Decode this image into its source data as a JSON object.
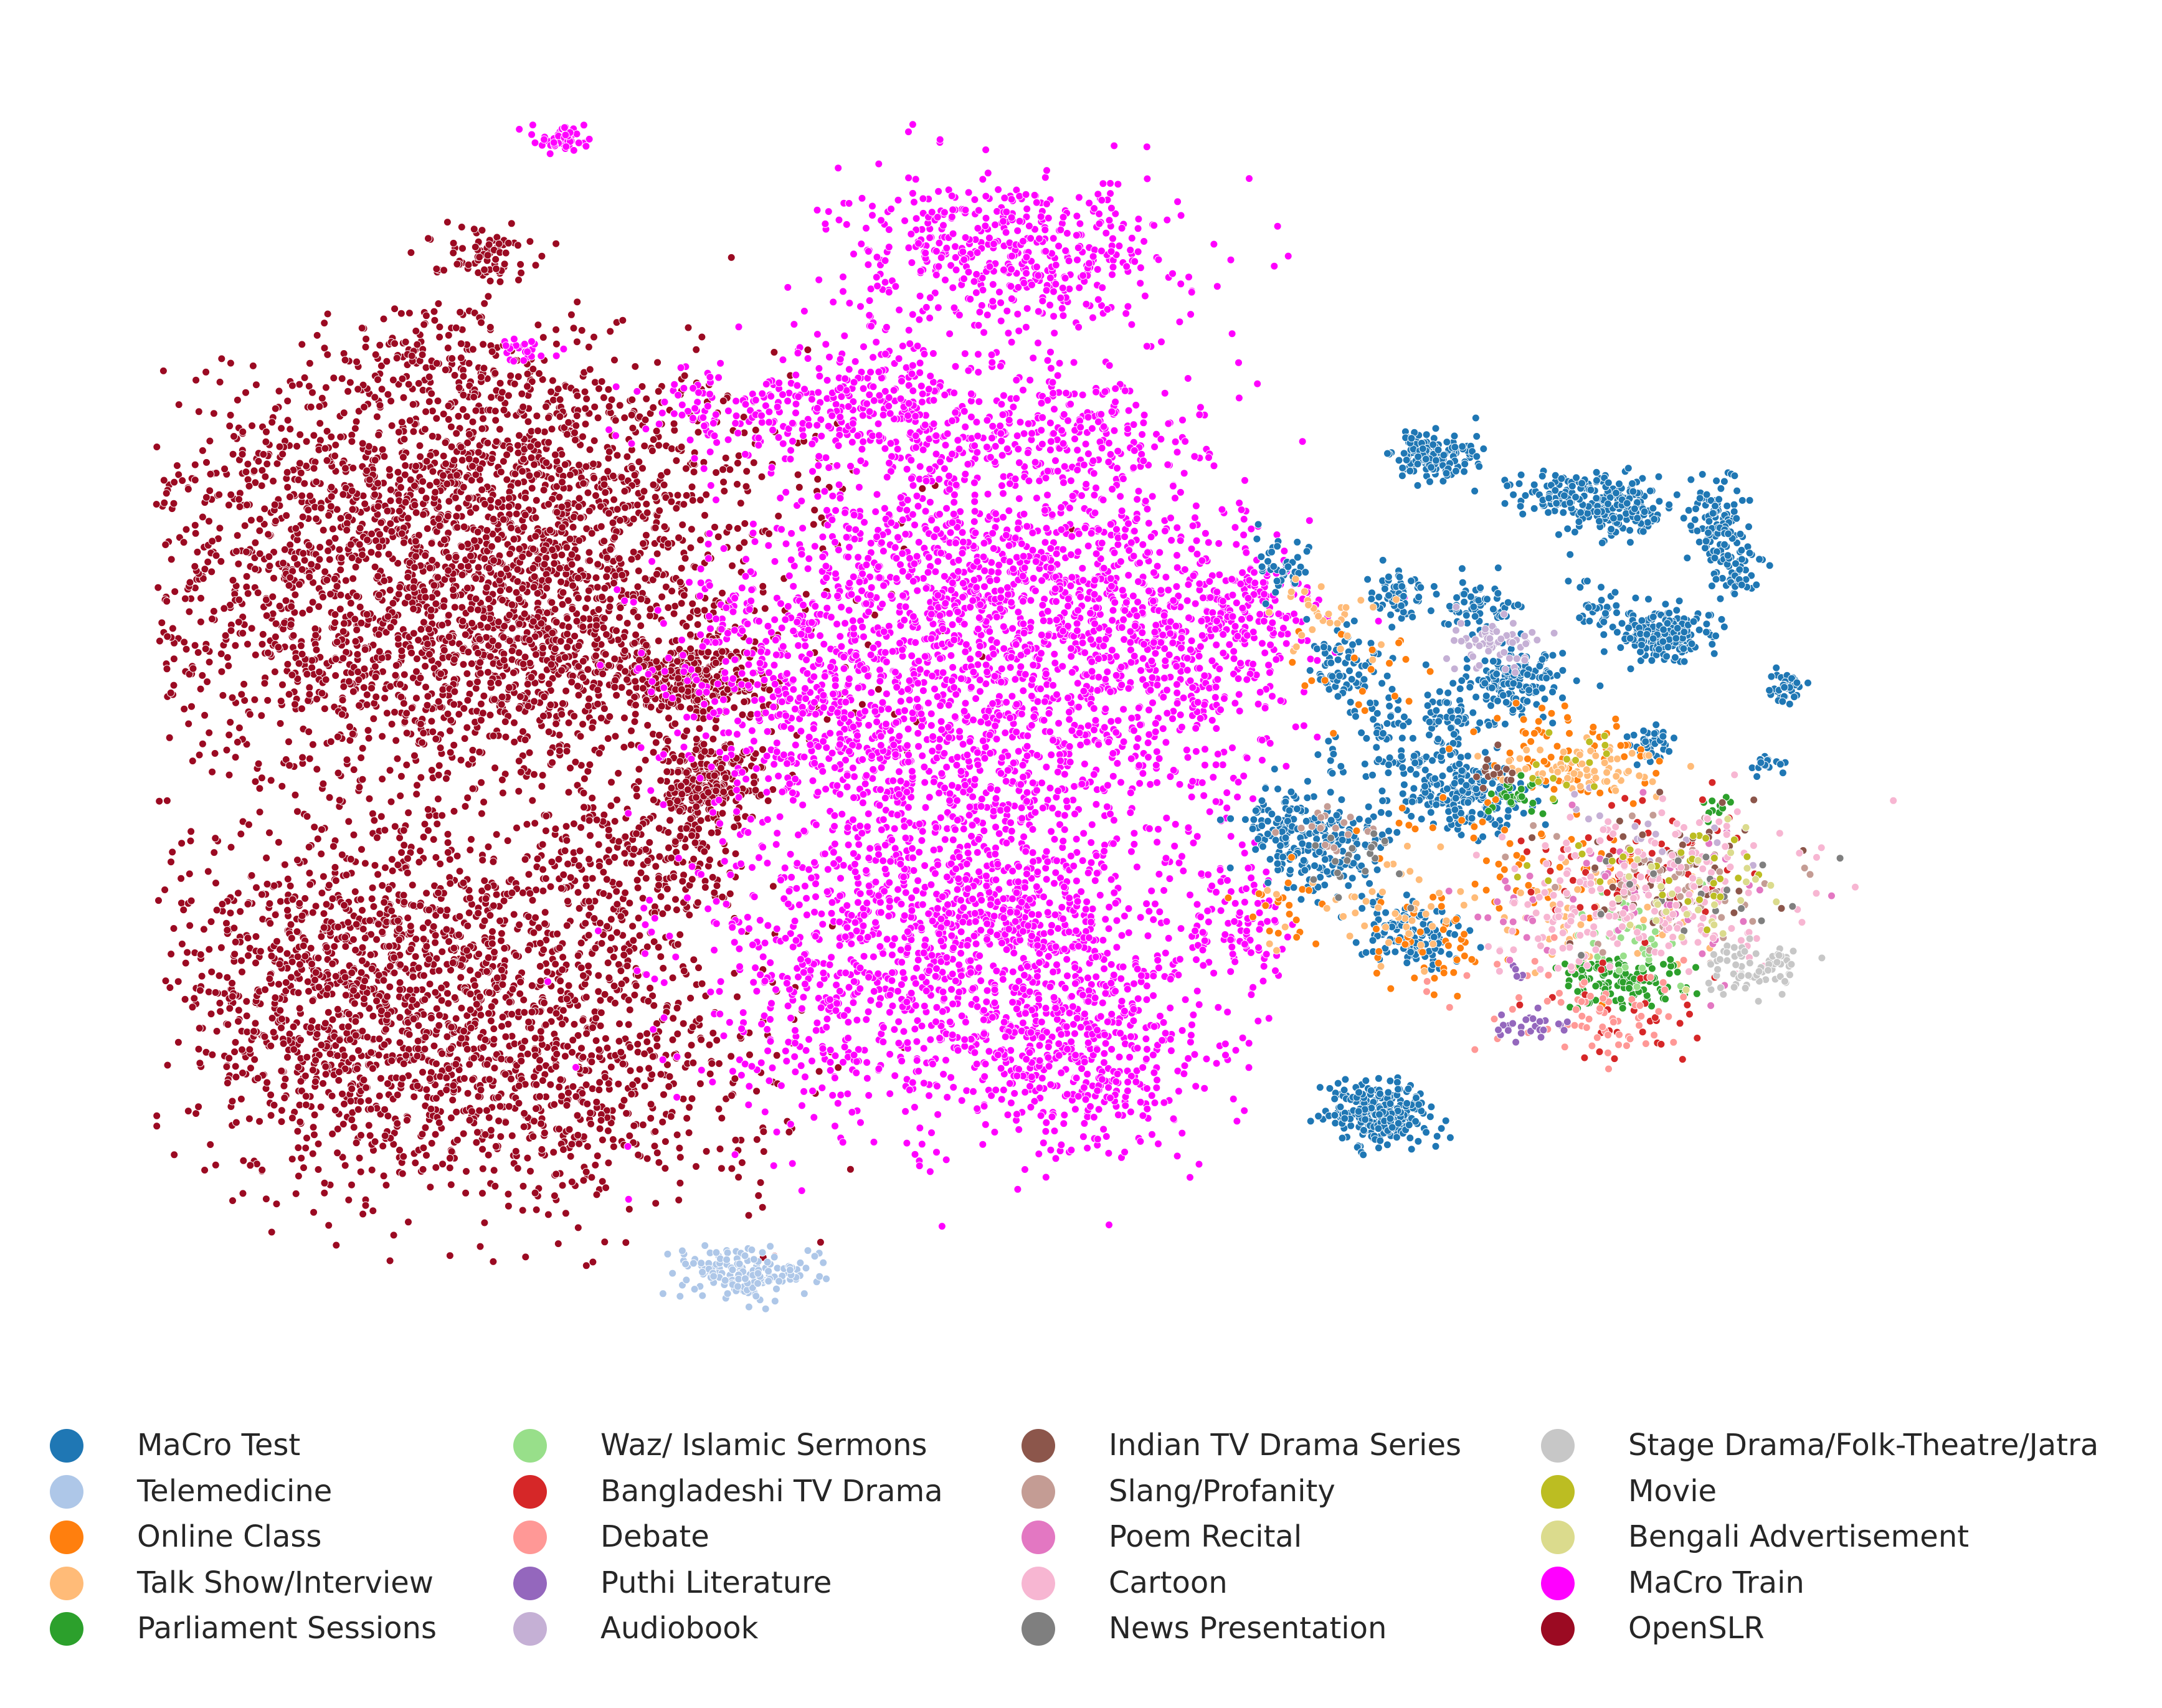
{
  "chart_data": {
    "type": "scatter",
    "title": "",
    "xlabel": "",
    "ylabel": "",
    "axes_visible": false,
    "grid": false,
    "legend_position": "bottom",
    "x_range": [
      -100,
      100
    ],
    "y_range": [
      -100,
      100
    ],
    "series": [
      {
        "name": "MaCro Test",
        "color": "#1f77b4",
        "blobs": [
          [
            48,
            43,
            2.5,
            2,
            150
          ],
          [
            70,
            35,
            3,
            2.5,
            160
          ],
          [
            82,
            32,
            2,
            4,
            110
          ],
          [
            64,
            37,
            3,
            2,
            100
          ],
          [
            76,
            15,
            3,
            2,
            200
          ],
          [
            58,
            8,
            3,
            2.5,
            150
          ],
          [
            52,
            -10,
            4,
            3,
            200
          ],
          [
            36,
            -18,
            4,
            4,
            170
          ],
          [
            46,
            -32,
            3,
            2.5,
            120
          ],
          [
            42,
            -60,
            3,
            2.5,
            260
          ],
          [
            54,
            20,
            2,
            2,
            60
          ],
          [
            44,
            22,
            2,
            2,
            60
          ],
          [
            38,
            10,
            3,
            3,
            80
          ],
          [
            30,
            -15,
            2,
            3,
            80
          ],
          [
            44,
            -2,
            4,
            4,
            90
          ],
          [
            90,
            7,
            1,
            1,
            40
          ],
          [
            84,
            25,
            1.5,
            2,
            40
          ],
          [
            68,
            20,
            2,
            2,
            30
          ],
          [
            30,
            26,
            2,
            2,
            40
          ],
          [
            74,
            -2,
            1.5,
            1.5,
            40
          ],
          [
            88,
            -5,
            1,
            1,
            20
          ],
          [
            50,
            2,
            3,
            2,
            50
          ]
        ]
      },
      {
        "name": "Telemedicine",
        "color": "#aec7e8",
        "blobs": [
          [
            -34,
            -85,
            3.5,
            2,
            170
          ]
        ]
      },
      {
        "name": "Online Class",
        "color": "#ff7f0e",
        "blobs": [
          [
            64,
            -3,
            6,
            4,
            70
          ],
          [
            58,
            -21,
            10,
            6,
            60
          ],
          [
            48,
            -34,
            4,
            3,
            40
          ],
          [
            30,
            -28,
            3,
            3,
            20
          ],
          [
            40,
            10,
            4,
            4,
            20
          ]
        ]
      },
      {
        "name": "Talk Show/Interview",
        "color": "#ffbb78",
        "blobs": [
          [
            66,
            -6,
            5,
            2,
            70
          ],
          [
            44,
            -27,
            7,
            4,
            50
          ],
          [
            68,
            -28,
            6,
            5,
            50
          ],
          [
            36,
            18,
            4,
            3,
            30
          ]
        ]
      },
      {
        "name": "Parliament Sessions",
        "color": "#2ca02c",
        "blobs": [
          [
            70,
            -39,
            4,
            2,
            120
          ],
          [
            58,
            -10,
            2,
            2,
            30
          ],
          [
            82,
            -12,
            1,
            1,
            10
          ]
        ]
      },
      {
        "name": "Waz/ Islamic Sermons",
        "color": "#98df8a",
        "blobs": [
          [
            72,
            -32,
            4,
            4,
            40
          ]
        ]
      },
      {
        "name": "Bangladeshi TV Drama",
        "color": "#d62728",
        "blobs": [
          [
            74,
            -20,
            7,
            5,
            60
          ],
          [
            70,
            -45,
            6,
            4,
            30
          ]
        ]
      },
      {
        "name": "Debate",
        "color": "#ff9896",
        "blobs": [
          [
            70,
            -44,
            4,
            4,
            50
          ],
          [
            60,
            -40,
            6,
            4,
            20
          ]
        ]
      },
      {
        "name": "Puthi Literature",
        "color": "#9467bd",
        "blobs": [
          [
            60,
            -46,
            2,
            1,
            25
          ],
          [
            58,
            -38,
            1,
            1,
            5
          ]
        ]
      },
      {
        "name": "Audiobook",
        "color": "#c5b0d5",
        "blobs": [
          [
            56,
            14,
            3,
            2,
            60
          ],
          [
            74,
            -18,
            6,
            4,
            20
          ]
        ]
      },
      {
        "name": "Indian TV Drama Series",
        "color": "#8c564b",
        "blobs": [
          [
            77,
            -21,
            7,
            5,
            50
          ],
          [
            56,
            -6,
            2,
            2,
            15
          ]
        ]
      },
      {
        "name": "Slang/Profanity",
        "color": "#c49c94",
        "blobs": [
          [
            78,
            -24,
            7,
            5,
            60
          ],
          [
            36,
            -15,
            4,
            2,
            20
          ]
        ]
      },
      {
        "name": "Poem Recital",
        "color": "#e377c2",
        "blobs": [
          [
            76,
            -25,
            7,
            6,
            40
          ],
          [
            58,
            -28,
            3,
            3,
            20
          ]
        ]
      },
      {
        "name": "Cartoon",
        "color": "#f7b6d2",
        "blobs": [
          [
            76,
            -25,
            8,
            6,
            170
          ],
          [
            64,
            -30,
            5,
            4,
            50
          ]
        ]
      },
      {
        "name": "News Presentation",
        "color": "#7f7f7f",
        "blobs": [
          [
            40,
            -20,
            3,
            3,
            20
          ],
          [
            76,
            -24,
            6,
            5,
            20
          ]
        ]
      },
      {
        "name": "Stage Drama/Folk-Theatre/Jatra",
        "color": "#c7c7c7",
        "blobs": [
          [
            86,
            -37,
            3,
            2,
            70
          ]
        ]
      },
      {
        "name": "Movie",
        "color": "#bcbd22",
        "blobs": [
          [
            76,
            -22,
            7,
            5,
            30
          ],
          [
            64,
            -5,
            3,
            3,
            15
          ]
        ]
      },
      {
        "name": "Bengali Advertisement",
        "color": "#dbdb8d",
        "blobs": [
          [
            78,
            -26,
            6,
            5,
            30
          ]
        ]
      },
      {
        "name": "MaCro Train",
        "color": "#ff00ff",
        "blobs": [
          [
            -2,
            75,
            10,
            6,
            500
          ],
          [
            -18,
            52,
            6,
            6,
            260
          ],
          [
            5,
            48,
            8,
            5,
            220
          ],
          [
            -6,
            25,
            12,
            12,
            900
          ],
          [
            14,
            12,
            10,
            12,
            700
          ],
          [
            -10,
            -5,
            12,
            12,
            700
          ],
          [
            -2,
            -30,
            10,
            10,
            700
          ],
          [
            6,
            -50,
            8,
            8,
            500
          ],
          [
            -22,
            -40,
            10,
            12,
            500
          ],
          [
            -28,
            10,
            8,
            10,
            400
          ],
          [
            -34,
            50,
            6,
            4,
            120
          ],
          [
            -55,
            93,
            1.5,
            1,
            50
          ],
          [
            -60,
            60,
            2,
            1,
            25
          ],
          [
            26,
            18,
            4,
            4,
            120
          ],
          [
            24,
            -30,
            4,
            6,
            100
          ]
        ]
      },
      {
        "name": "OpenSLR",
        "color": "#9b0a22",
        "blobs": [
          [
            -65,
            40,
            18,
            10,
            1200
          ],
          [
            -80,
            20,
            14,
            14,
            800
          ],
          [
            -60,
            10,
            18,
            10,
            900
          ],
          [
            -72,
            -34,
            16,
            10,
            1000
          ],
          [
            -62,
            -55,
            16,
            10,
            900
          ],
          [
            -85,
            -45,
            8,
            12,
            300
          ],
          [
            -70,
            60,
            6,
            4,
            120
          ],
          [
            -65,
            75,
            3,
            2,
            80
          ],
          [
            -40,
            8,
            4,
            3,
            220
          ],
          [
            -38,
            -8,
            3,
            3,
            220
          ],
          [
            -45,
            -20,
            6,
            6,
            200
          ],
          [
            -50,
            20,
            10,
            12,
            300
          ]
        ]
      }
    ]
  }
}
